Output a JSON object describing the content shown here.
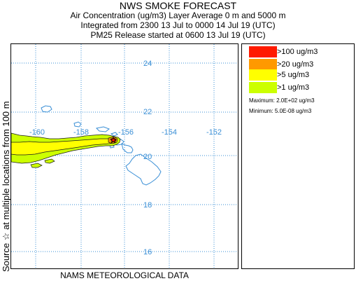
{
  "header": {
    "title": "NWS SMOKE FORECAST",
    "line1": "Air Concentration (ug/m3) Layer Average    0 m and  5000 m",
    "line2": "Integrated from 2300 13 Jul to 0000 14 Jul 19 (UTC)",
    "line3": "PM25 Release started at 0600 13 Jul 19 (UTC)"
  },
  "side_label": "Source ☆   at multiple locations      from   100 m",
  "footer": "NAMS METEOROLOGICAL DATA",
  "map": {
    "lat_labels": [
      "24",
      "22",
      "20",
      "18",
      "16"
    ],
    "lon_labels": [
      "-160",
      "-158",
      "-156",
      "-154",
      "-152"
    ],
    "grid_color": "#3a8fd6",
    "label_color": "#3a8fd6"
  },
  "legend": {
    "items": [
      {
        "label": ">100 ug/m3",
        "color": "#ff1a00"
      },
      {
        "label": ">20 ug/m3",
        "color": "#ff9900"
      },
      {
        "label": ">5 ug/m3",
        "color": "#ffff00"
      },
      {
        "label": ">1 ug/m3",
        "color": "#ccff00"
      }
    ],
    "maximum": "Maximum: 2.0E+02 ug/m3",
    "minimum": "Minimum: 5.0E-08 ug/m3"
  }
}
